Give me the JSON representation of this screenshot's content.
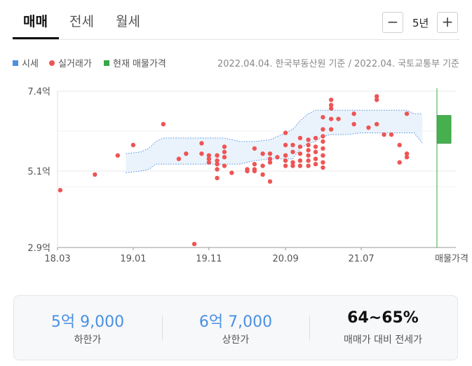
{
  "tabs": [
    {
      "label": "매매",
      "active": true
    },
    {
      "label": "전세",
      "active": false
    },
    {
      "label": "월세",
      "active": false
    }
  ],
  "range": {
    "label": "5년",
    "minus_icon": "minus-icon",
    "plus_icon": "plus-icon"
  },
  "legend": [
    {
      "label": "시세",
      "color": "#4a90e2",
      "shape": "square"
    },
    {
      "label": "실거래가",
      "color": "#ee5555",
      "shape": "circle"
    },
    {
      "label": "현재 매물가격",
      "color": "#3aa64a",
      "shape": "square"
    }
  ],
  "source_note": "2022.04.04. 한국부동산원 기준 / 2022.04. 국토교통부 기준",
  "chart_data": {
    "type": "scatter",
    "x_unit": "year-month (decimal years)",
    "y_unit": "억 원",
    "x_ticks": [
      {
        "value": 2018.17,
        "label": "18.03"
      },
      {
        "value": 2019.0,
        "label": "19.01"
      },
      {
        "value": 2019.83,
        "label": "19.11"
      },
      {
        "value": 2020.67,
        "label": "20.09"
      },
      {
        "value": 2021.5,
        "label": "21.07"
      }
    ],
    "listing_tick_label": "매물가격",
    "y_ticks": [
      {
        "value": 7.4,
        "label": "7.4억"
      },
      {
        "value": 5.1,
        "label": "5.1억"
      },
      {
        "value": 2.9,
        "label": "2.9억"
      }
    ],
    "xlim": [
      2018.17,
      2022.33
    ],
    "ylim": [
      2.9,
      7.4
    ],
    "grid": true,
    "series": [
      {
        "name": "시세",
        "kind": "band",
        "color": "#4a90e2",
        "x": [
          2018.92,
          2019.08,
          2019.17,
          2019.25,
          2019.33,
          2019.42,
          2019.5,
          2019.58,
          2019.67,
          2019.75,
          2019.83,
          2019.92,
          2020.0,
          2020.17,
          2020.33,
          2020.5,
          2020.67,
          2020.75,
          2020.83,
          2020.92,
          2021.0,
          2021.08,
          2021.17,
          2021.33,
          2021.5,
          2021.67,
          2021.83,
          2022.0,
          2022.08,
          2022.17
        ],
        "lower": [
          5.05,
          5.1,
          5.15,
          5.3,
          5.3,
          5.3,
          5.3,
          5.3,
          5.3,
          5.3,
          5.3,
          5.3,
          5.3,
          5.3,
          5.4,
          5.45,
          5.45,
          5.45,
          5.75,
          5.9,
          5.95,
          6.1,
          6.15,
          6.15,
          6.2,
          6.2,
          6.2,
          6.2,
          6.2,
          5.9
        ],
        "upper": [
          5.6,
          5.65,
          5.75,
          5.95,
          6.05,
          6.05,
          6.05,
          6.05,
          6.05,
          6.05,
          6.05,
          6.05,
          6.05,
          5.95,
          5.95,
          6.0,
          6.2,
          6.3,
          6.55,
          6.75,
          6.85,
          6.85,
          6.85,
          6.85,
          6.85,
          6.85,
          6.85,
          6.85,
          6.75,
          6.75
        ]
      },
      {
        "name": "실거래가",
        "kind": "scatter",
        "color": "#ee5555",
        "points": [
          [
            2018.2,
            4.55
          ],
          [
            2018.58,
            5.0
          ],
          [
            2018.83,
            5.55
          ],
          [
            2019.0,
            5.85
          ],
          [
            2019.33,
            6.45
          ],
          [
            2019.5,
            5.45
          ],
          [
            2019.58,
            5.6
          ],
          [
            2019.67,
            3.0
          ],
          [
            2019.75,
            5.9
          ],
          [
            2019.75,
            5.6
          ],
          [
            2019.83,
            5.55
          ],
          [
            2019.83,
            5.45
          ],
          [
            2019.83,
            5.35
          ],
          [
            2019.92,
            5.55
          ],
          [
            2019.92,
            5.4
          ],
          [
            2019.92,
            5.3
          ],
          [
            2019.92,
            5.15
          ],
          [
            2019.92,
            4.9
          ],
          [
            2020.0,
            5.8
          ],
          [
            2020.0,
            5.65
          ],
          [
            2020.0,
            5.5
          ],
          [
            2020.0,
            5.25
          ],
          [
            2020.08,
            5.05
          ],
          [
            2020.25,
            5.15
          ],
          [
            2020.25,
            5.1
          ],
          [
            2020.33,
            5.75
          ],
          [
            2020.33,
            5.3
          ],
          [
            2020.33,
            5.15
          ],
          [
            2020.33,
            5.1
          ],
          [
            2020.42,
            5.6
          ],
          [
            2020.42,
            5.25
          ],
          [
            2020.42,
            5.0
          ],
          [
            2020.5,
            5.6
          ],
          [
            2020.5,
            5.45
          ],
          [
            2020.5,
            5.35
          ],
          [
            2020.5,
            4.8
          ],
          [
            2020.58,
            5.5
          ],
          [
            2020.67,
            6.2
          ],
          [
            2020.67,
            5.85
          ],
          [
            2020.67,
            5.55
          ],
          [
            2020.67,
            5.4
          ],
          [
            2020.67,
            5.25
          ],
          [
            2020.75,
            5.85
          ],
          [
            2020.75,
            5.65
          ],
          [
            2020.75,
            5.35
          ],
          [
            2020.75,
            5.25
          ],
          [
            2020.83,
            6.05
          ],
          [
            2020.83,
            5.8
          ],
          [
            2020.83,
            5.6
          ],
          [
            2020.83,
            5.4
          ],
          [
            2020.83,
            5.25
          ],
          [
            2020.92,
            6.0
          ],
          [
            2020.92,
            5.85
          ],
          [
            2020.92,
            5.7
          ],
          [
            2020.92,
            5.55
          ],
          [
            2020.92,
            5.4
          ],
          [
            2020.92,
            5.25
          ],
          [
            2021.0,
            6.05
          ],
          [
            2021.0,
            5.8
          ],
          [
            2021.0,
            5.65
          ],
          [
            2021.0,
            5.45
          ],
          [
            2021.0,
            5.3
          ],
          [
            2021.08,
            6.65
          ],
          [
            2021.08,
            6.3
          ],
          [
            2021.08,
            6.1
          ],
          [
            2021.08,
            5.95
          ],
          [
            2021.08,
            5.75
          ],
          [
            2021.08,
            5.55
          ],
          [
            2021.08,
            5.35
          ],
          [
            2021.08,
            5.2
          ],
          [
            2021.17,
            7.15
          ],
          [
            2021.17,
            7.0
          ],
          [
            2021.17,
            6.9
          ],
          [
            2021.17,
            6.6
          ],
          [
            2021.17,
            6.3
          ],
          [
            2021.25,
            6.6
          ],
          [
            2021.42,
            6.75
          ],
          [
            2021.42,
            6.45
          ],
          [
            2021.58,
            6.35
          ],
          [
            2021.67,
            7.25
          ],
          [
            2021.67,
            7.15
          ],
          [
            2021.67,
            6.45
          ],
          [
            2021.75,
            6.15
          ],
          [
            2021.83,
            6.15
          ],
          [
            2021.92,
            5.85
          ],
          [
            2021.92,
            5.35
          ],
          [
            2022.0,
            6.75
          ],
          [
            2022.0,
            5.6
          ],
          [
            2022.0,
            5.5
          ]
        ]
      },
      {
        "name": "현재 매물가격",
        "kind": "bar",
        "color": "#3aa64a",
        "x_label": "매물가격",
        "low": 5.9,
        "high": 6.7
      }
    ]
  },
  "summary": [
    {
      "value": "5억 9,000",
      "label": "하한가"
    },
    {
      "value": "6억 7,000",
      "label": "상한가"
    },
    {
      "value": "64~65%",
      "label": "매매가 대비 전세가"
    }
  ]
}
